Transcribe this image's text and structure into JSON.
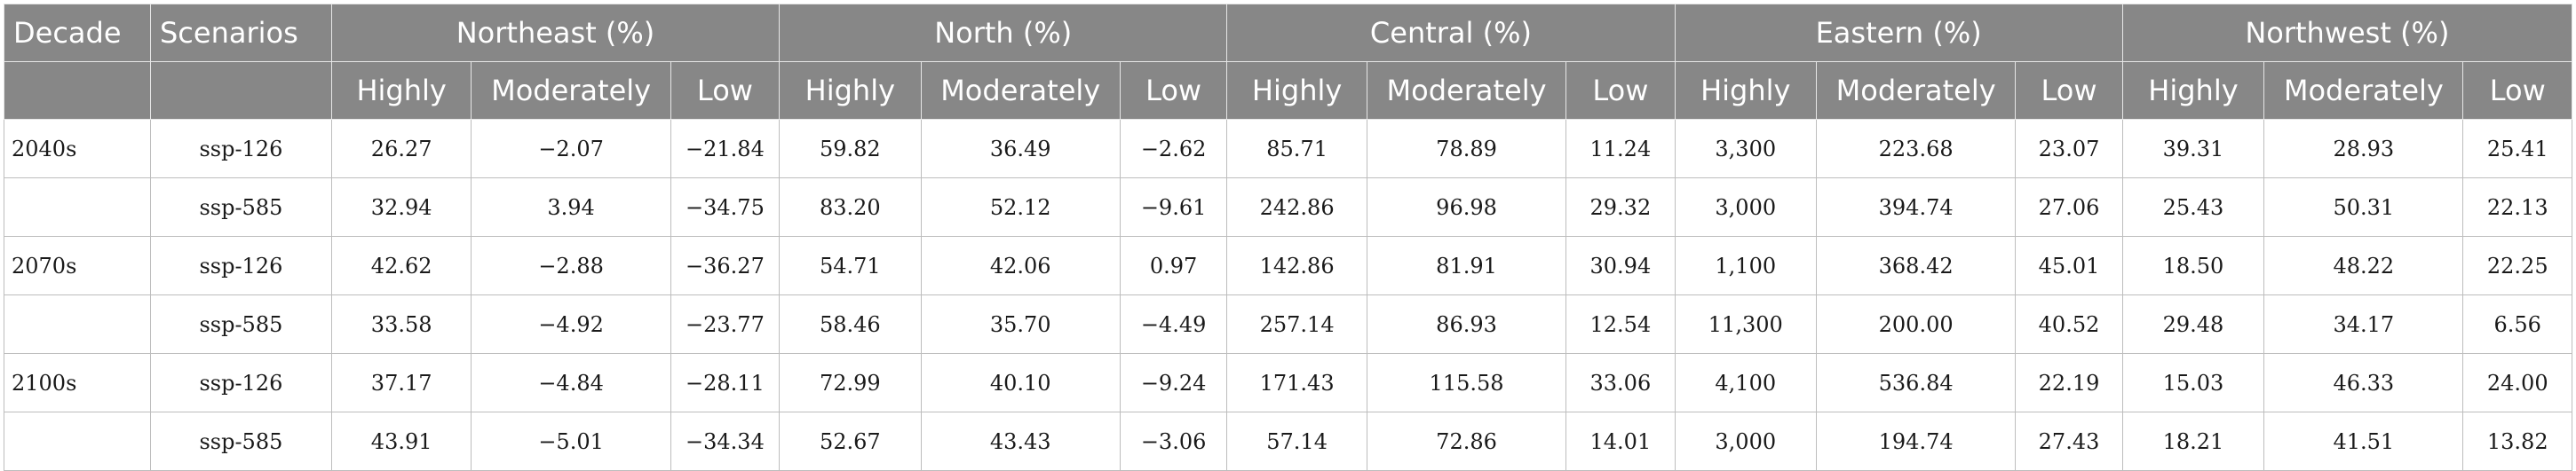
{
  "header": {
    "decade": "Decade",
    "scenarios": "Scenarios",
    "regions": [
      "Northeast (%)",
      "North (%)",
      "Central (%)",
      "Eastern (%)",
      "Northwest (%)"
    ],
    "levels": [
      "Highly",
      "Moderately",
      "Low"
    ]
  },
  "rows": [
    {
      "decade": "2040s",
      "scenario": "ssp-126",
      "values": [
        "26.27",
        "−2.07",
        "−21.84",
        "59.82",
        "36.49",
        "−2.62",
        "85.71",
        "78.89",
        "11.24",
        "3,300",
        "223.68",
        "23.07",
        "39.31",
        "28.93",
        "25.41"
      ]
    },
    {
      "decade": "",
      "scenario": "ssp-585",
      "values": [
        "32.94",
        "3.94",
        "−34.75",
        "83.20",
        "52.12",
        "−9.61",
        "242.86",
        "96.98",
        "29.32",
        "3,000",
        "394.74",
        "27.06",
        "25.43",
        "50.31",
        "22.13"
      ]
    },
    {
      "decade": "2070s",
      "scenario": "ssp-126",
      "values": [
        "42.62",
        "−2.88",
        "−36.27",
        "54.71",
        "42.06",
        "0.97",
        "142.86",
        "81.91",
        "30.94",
        "1,100",
        "368.42",
        "45.01",
        "18.50",
        "48.22",
        "22.25"
      ]
    },
    {
      "decade": "",
      "scenario": "ssp-585",
      "values": [
        "33.58",
        "−4.92",
        "−23.77",
        "58.46",
        "35.70",
        "−4.49",
        "257.14",
        "86.93",
        "12.54",
        "11,300",
        "200.00",
        "40.52",
        "29.48",
        "34.17",
        "6.56"
      ]
    },
    {
      "decade": "2100s",
      "scenario": "ssp-126",
      "values": [
        "37.17",
        "−4.84",
        "−28.11",
        "72.99",
        "40.10",
        "−9.24",
        "171.43",
        "115.58",
        "33.06",
        "4,100",
        "536.84",
        "22.19",
        "15.03",
        "46.33",
        "24.00"
      ]
    },
    {
      "decade": "",
      "scenario": "ssp-585",
      "values": [
        "43.91",
        "−5.01",
        "−34.34",
        "52.67",
        "43.43",
        "−3.06",
        "57.14",
        "72.86",
        "14.01",
        "3,000",
        "194.74",
        "27.43",
        "18.21",
        "41.51",
        "13.82"
      ]
    }
  ]
}
